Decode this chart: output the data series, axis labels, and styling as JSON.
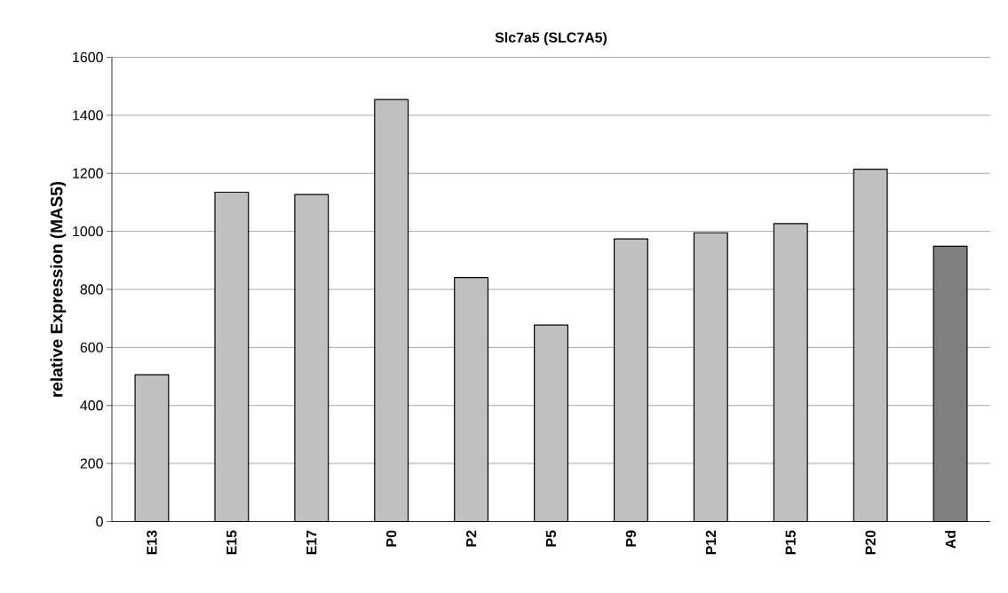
{
  "chart_data": {
    "type": "bar",
    "title": "Slc7a5 (SLC7A5)",
    "ylabel": "relative Expression (MAS5)",
    "categories": [
      "E13",
      "E15",
      "E17",
      "P0",
      "P2",
      "P5",
      "P9",
      "P12",
      "P15",
      "P20",
      "Ad"
    ],
    "values": [
      506,
      1135,
      1127,
      1454,
      841,
      677,
      974,
      995,
      1027,
      1214,
      949
    ],
    "colors": [
      "#c0c0c0",
      "#c0c0c0",
      "#c0c0c0",
      "#c0c0c0",
      "#c0c0c0",
      "#c0c0c0",
      "#c0c0c0",
      "#c0c0c0",
      "#c0c0c0",
      "#c0c0c0",
      "#808080"
    ],
    "ylim": [
      0,
      1600
    ],
    "yticks": [
      0,
      200,
      400,
      600,
      800,
      1000,
      1200,
      1400,
      1600
    ],
    "grid": "y"
  }
}
